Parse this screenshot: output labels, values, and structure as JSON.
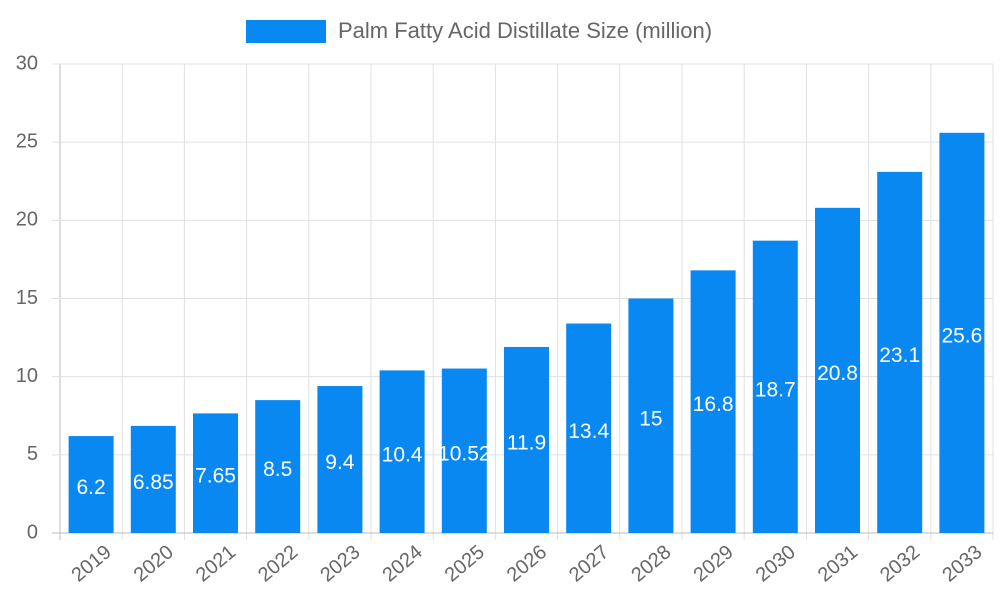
{
  "chart_data": {
    "type": "bar",
    "categories": [
      "2019",
      "2020",
      "2021",
      "2022",
      "2023",
      "2024",
      "2025",
      "2026",
      "2027",
      "2028",
      "2029",
      "2030",
      "2031",
      "2032",
      "2033"
    ],
    "series": [
      {
        "name": "Palm Fatty Acid Distillate Size (million)",
        "color": "#0a88f2",
        "values": [
          6.2,
          6.85,
          7.65,
          8.5,
          9.4,
          10.4,
          10.52,
          11.9,
          13.4,
          15,
          16.8,
          18.7,
          20.8,
          23.1,
          25.6
        ]
      }
    ],
    "ylim": [
      0,
      30
    ],
    "yticks": [
      0,
      5,
      10,
      15,
      20,
      25,
      30
    ],
    "grid": true,
    "legend": "top"
  }
}
